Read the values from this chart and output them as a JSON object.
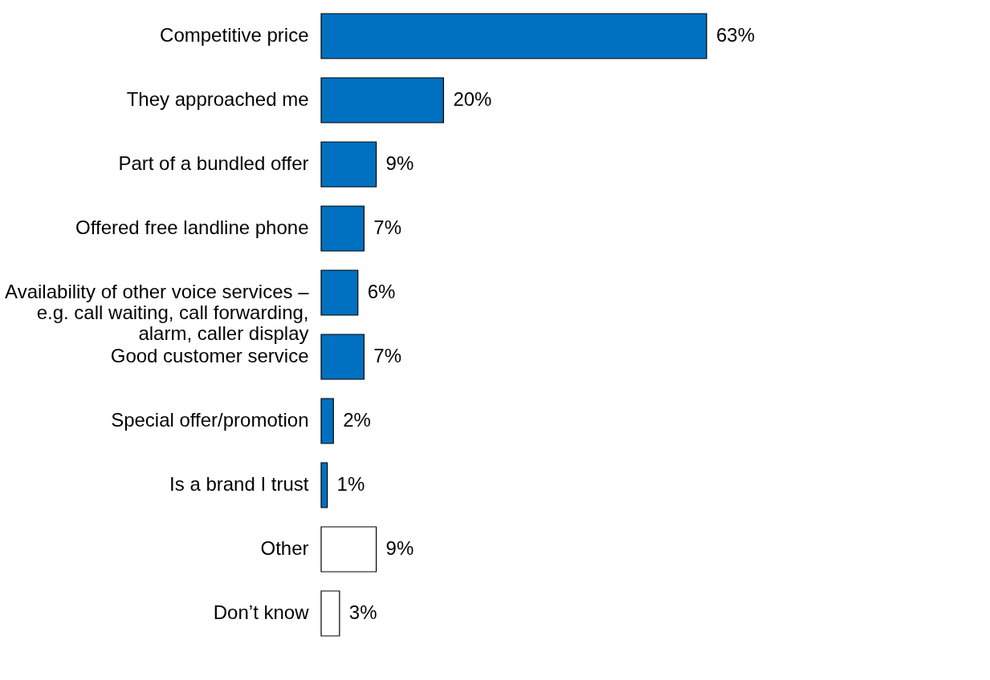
{
  "chart_data": {
    "type": "bar",
    "orientation": "horizontal",
    "categories": [
      "Competitive price",
      "They approached me",
      "Part of a bundled offer",
      "Offered free landline phone",
      "Availability of other voice services –\ne.g. call waiting, call forwarding,\nalarm, caller display",
      "Good customer service",
      "Special offer/promotion",
      "Is a brand I trust",
      "Other",
      "Don’t know"
    ],
    "values": [
      63,
      20,
      9,
      7,
      6,
      7,
      2,
      1,
      9,
      3
    ],
    "colors": [
      "#0070c0",
      "#0070c0",
      "#0070c0",
      "#0070c0",
      "#0070c0",
      "#0070c0",
      "#0070c0",
      "#0070c0",
      "#ffffff",
      "#ffffff"
    ],
    "value_labels": [
      "63%",
      "20%",
      "9%",
      "7%",
      "6%",
      "7%",
      "2%",
      "1%",
      "9%",
      "3%"
    ]
  }
}
